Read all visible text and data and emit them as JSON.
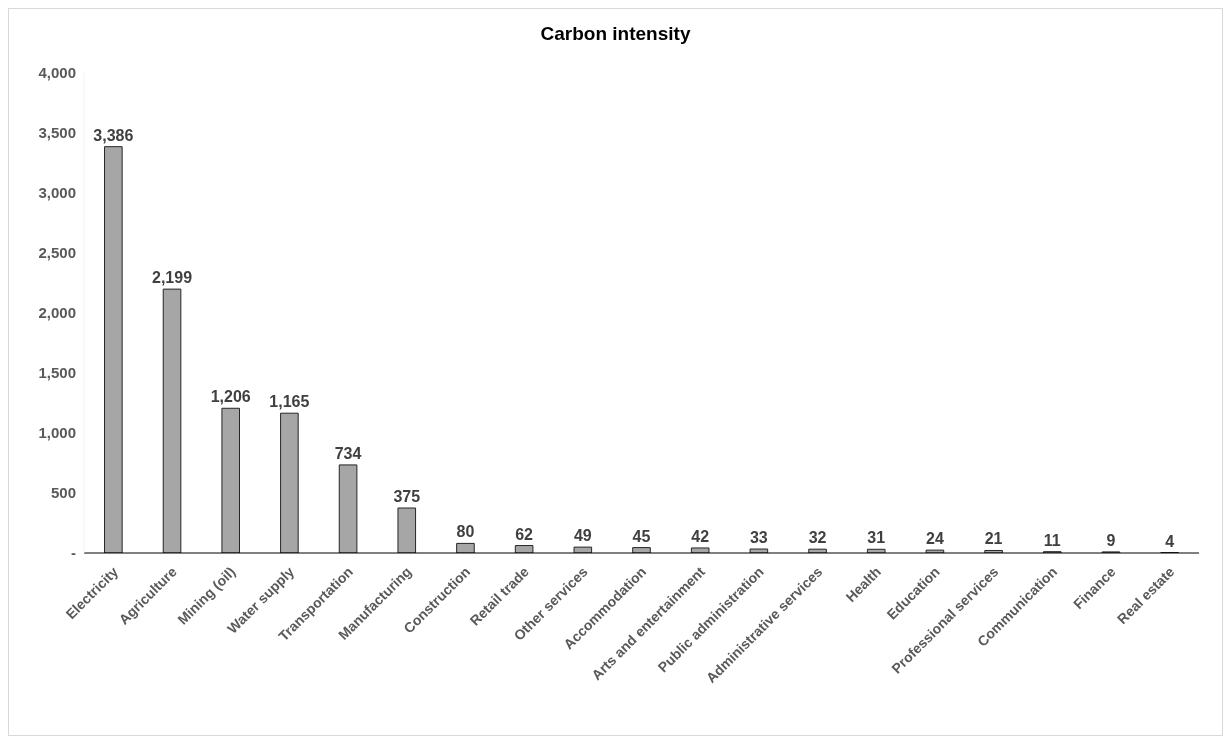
{
  "chart_data": {
    "type": "bar",
    "title": "Carbon intensity",
    "categories": [
      "Electricity",
      "Agriculture",
      "Mining (oil)",
      "Water supply",
      "Transportation",
      "Manufacturing",
      "Construction",
      "Retail trade",
      "Other services",
      "Accommodation",
      "Arts and entertainment",
      "Public administration",
      "Administrative services",
      "Health",
      "Education",
      "Professional services",
      "Communication",
      "Finance",
      "Real estate"
    ],
    "values": [
      3386,
      2199,
      1206,
      1165,
      734,
      375,
      80,
      62,
      49,
      45,
      42,
      33,
      32,
      31,
      24,
      21,
      11,
      9,
      4
    ],
    "value_labels": [
      "3,386",
      "2,199",
      "1,206",
      "1,165",
      "734",
      "375",
      "80",
      "62",
      "49",
      "45",
      "42",
      "33",
      "32",
      "31",
      "24",
      "21",
      "11",
      "9",
      "4"
    ],
    "color": "#a6a6a6",
    "ylim": [
      0,
      4000
    ],
    "yticks": [
      {
        "value": 0,
        "label": "-"
      },
      {
        "value": 500,
        "label": "500"
      },
      {
        "value": 1000,
        "label": "1,000"
      },
      {
        "value": 1500,
        "label": "1,500"
      },
      {
        "value": 2000,
        "label": "2,000"
      },
      {
        "value": 2500,
        "label": "2,500"
      },
      {
        "value": 3000,
        "label": "3,000"
      },
      {
        "value": 3500,
        "label": "3,500"
      },
      {
        "value": 4000,
        "label": "4,000"
      }
    ],
    "grid": false,
    "legend": false
  }
}
